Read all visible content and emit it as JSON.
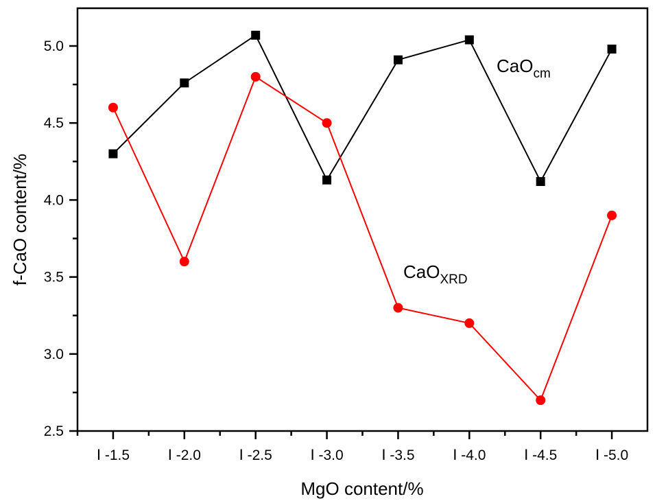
{
  "chart_data": {
    "type": "line",
    "title": "",
    "xlabel": "MgO content/%",
    "ylabel": "f-CaO content/%",
    "categories": [
      "Ⅰ -1.5",
      "Ⅰ -2.0",
      "Ⅰ -2.5",
      "Ⅰ -3.0",
      "Ⅰ -3.5",
      "Ⅰ -4.0",
      "Ⅰ -4.5",
      "Ⅰ -5.0"
    ],
    "ylim": [
      2.5,
      5.25
    ],
    "yticks": [
      "2.5",
      "3.0",
      "3.5",
      "4.0",
      "4.5",
      "5.0"
    ],
    "grid": false,
    "series": [
      {
        "name": "CaOcm",
        "label_main": "CaO",
        "label_sub": "cm",
        "color": "#000000",
        "marker": "square",
        "values": [
          4.3,
          4.76,
          5.07,
          4.13,
          4.91,
          5.04,
          4.12,
          4.98
        ]
      },
      {
        "name": "CaOXRD",
        "label_main": "CaO",
        "label_sub": "XRD",
        "color": "#ff0000",
        "marker": "circle",
        "values": [
          4.6,
          3.6,
          4.8,
          4.5,
          3.3,
          3.2,
          2.7,
          3.9
        ]
      }
    ]
  }
}
